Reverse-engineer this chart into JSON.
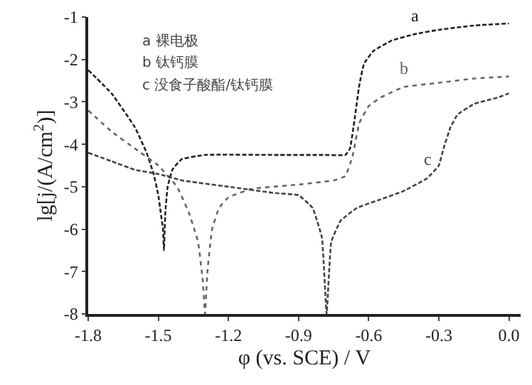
{
  "chart_data": {
    "type": "line",
    "xlabel": "φ (vs. SCE) / V",
    "ylabel": "lg[j/(A/cm$^{2}$)]",
    "xlim": [
      -1.8,
      0.05
    ],
    "ylim": [
      -8,
      -1
    ],
    "xticks": [
      {
        "value": -1.8,
        "label": "-1.8"
      },
      {
        "value": -1.5,
        "label": "-1.5"
      },
      {
        "value": -1.2,
        "label": "-1.2"
      },
      {
        "value": -0.9,
        "label": "-0.9"
      },
      {
        "value": -0.6,
        "label": "-0.6"
      },
      {
        "value": -0.3,
        "label": "-0.3"
      },
      {
        "value": 0,
        "label": "0.0"
      }
    ],
    "yticks": [
      -8,
      -7,
      -6,
      -5,
      -4,
      -3,
      -2,
      -1
    ],
    "grid": false,
    "legend": false,
    "series": [
      {
        "name": "a",
        "color": "#222222",
        "line_style": "dashed",
        "x": [
          -1.8,
          -1.7,
          -1.6,
          -1.55,
          -1.52,
          -1.5,
          -1.49,
          -1.48,
          -1.476,
          -1.47,
          -1.46,
          -1.44,
          -1.4,
          -1.3,
          -1.0,
          -0.8,
          -0.7,
          -0.68,
          -0.66,
          -0.64,
          -0.62,
          -0.58,
          -0.5,
          -0.4,
          -0.3,
          -0.15,
          0.0
        ],
        "values": [
          -2.25,
          -2.8,
          -3.6,
          -4.2,
          -4.7,
          -5.2,
          -5.6,
          -6.0,
          -6.5,
          -5.6,
          -5.0,
          -4.6,
          -4.35,
          -4.25,
          -4.25,
          -4.25,
          -4.25,
          -4.1,
          -3.4,
          -2.6,
          -2.1,
          -1.8,
          -1.55,
          -1.4,
          -1.3,
          -1.2,
          -1.15
        ]
      },
      {
        "name": "b",
        "color": "#666666",
        "line_style": "dotted",
        "x": [
          -1.8,
          -1.7,
          -1.6,
          -1.5,
          -1.42,
          -1.37,
          -1.33,
          -1.31,
          -1.3,
          -1.29,
          -1.27,
          -1.24,
          -1.2,
          -1.1,
          -0.9,
          -0.75,
          -0.7,
          -0.67,
          -0.64,
          -0.6,
          -0.55,
          -0.45,
          -0.3,
          -0.15,
          0.0
        ],
        "values": [
          -3.2,
          -3.7,
          -4.1,
          -4.5,
          -5.0,
          -5.6,
          -6.3,
          -7.2,
          -8.0,
          -7.0,
          -6.0,
          -5.5,
          -5.25,
          -5.05,
          -4.95,
          -4.85,
          -4.75,
          -4.3,
          -3.5,
          -3.1,
          -2.9,
          -2.65,
          -2.55,
          -2.45,
          -2.4
        ]
      },
      {
        "name": "c",
        "color": "#444444",
        "line_style": "dashed",
        "x": [
          -1.8,
          -1.7,
          -1.6,
          -1.5,
          -1.4,
          -1.2,
          -1.0,
          -0.9,
          -0.84,
          -0.8,
          -0.78,
          -0.76,
          -0.72,
          -0.65,
          -0.55,
          -0.45,
          -0.35,
          -0.3,
          -0.28,
          -0.25,
          -0.22,
          -0.15,
          -0.05,
          0.0
        ],
        "values": [
          -4.2,
          -4.4,
          -4.6,
          -4.7,
          -4.85,
          -5.0,
          -5.15,
          -5.2,
          -5.5,
          -6.2,
          -8.0,
          -6.3,
          -5.8,
          -5.5,
          -5.3,
          -5.1,
          -4.8,
          -4.5,
          -4.1,
          -3.6,
          -3.3,
          -3.05,
          -2.9,
          -2.8
        ]
      }
    ],
    "annotations": [
      "a 裸电极",
      "b 钛钙膜",
      "c 没食子酸酯/钛钙膜"
    ]
  }
}
